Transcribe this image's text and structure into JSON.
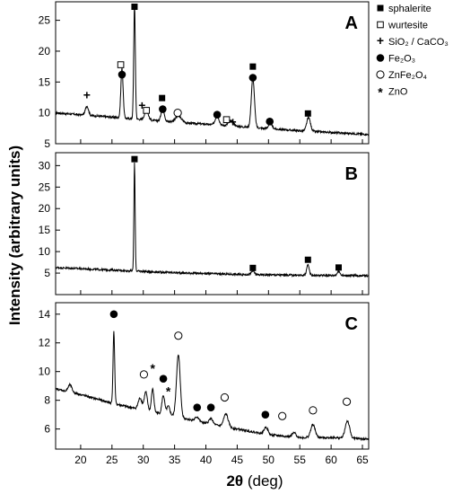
{
  "figure": {
    "ylabel": "Intensity (arbitrary units)",
    "xlabel_theta": "2θ",
    "xlabel_unit": " (deg)"
  },
  "legend": [
    {
      "key": "sphalerite",
      "symbol": "filled-square",
      "label": "sphalerite"
    },
    {
      "key": "wurtesite",
      "symbol": "open-square",
      "label": "wurtesite"
    },
    {
      "key": "sio2",
      "symbol": "plus",
      "label": "SiO₂ / CaCO₃"
    },
    {
      "key": "fe2o3",
      "symbol": "filled-circle",
      "label": "Fe₂O₃"
    },
    {
      "key": "znfe2o4",
      "symbol": "open-circle",
      "label": "ZnFe₂O₄"
    },
    {
      "key": "zno",
      "symbol": "star",
      "label": "ZnO"
    }
  ],
  "chart_data": [
    {
      "type": "line",
      "panel": "A",
      "xlim": [
        16,
        66
      ],
      "ylim": [
        5,
        28
      ],
      "yticks": [
        5,
        10,
        15,
        20,
        25
      ],
      "xticks": [
        20,
        25,
        30,
        35,
        40,
        45,
        50,
        55,
        60,
        65
      ],
      "baseline": [
        [
          16,
          10.0
        ],
        [
          25,
          9.3
        ],
        [
          35,
          8.5
        ],
        [
          45,
          7.8
        ],
        [
          55,
          7.1
        ],
        [
          66,
          6.5
        ]
      ],
      "peaks": [
        [
          21.0,
          1.5,
          0.25
        ],
        [
          26.6,
          8.0,
          0.18
        ],
        [
          28.6,
          18.5,
          0.13
        ],
        [
          30.5,
          1.5,
          0.3
        ],
        [
          33.1,
          2.2,
          0.25
        ],
        [
          35.6,
          1.0,
          0.5
        ],
        [
          41.8,
          1.5,
          0.3
        ],
        [
          44.0,
          0.8,
          0.4
        ],
        [
          47.5,
          8.0,
          0.25
        ],
        [
          50.3,
          0.8,
          0.3
        ],
        [
          56.4,
          2.2,
          0.3
        ]
      ],
      "markers": [
        {
          "x": 28.6,
          "y": 27.2,
          "symbol": "filled-square"
        },
        {
          "x": 26.4,
          "y": 17.8,
          "symbol": "open-square"
        },
        {
          "x": 26.6,
          "y": 16.2,
          "symbol": "filled-circle"
        },
        {
          "x": 21.0,
          "y": 12.8,
          "symbol": "plus"
        },
        {
          "x": 29.8,
          "y": 11.1,
          "symbol": "plus"
        },
        {
          "x": 30.5,
          "y": 10.4,
          "symbol": "open-square"
        },
        {
          "x": 33.0,
          "y": 12.4,
          "symbol": "filled-square"
        },
        {
          "x": 33.1,
          "y": 10.6,
          "symbol": "filled-circle"
        },
        {
          "x": 35.5,
          "y": 10.0,
          "symbol": "open-circle"
        },
        {
          "x": 41.8,
          "y": 9.7,
          "symbol": "filled-circle"
        },
        {
          "x": 43.3,
          "y": 8.9,
          "symbol": "open-square"
        },
        {
          "x": 44.3,
          "y": 8.4,
          "symbol": "plus"
        },
        {
          "x": 47.5,
          "y": 17.5,
          "symbol": "filled-square"
        },
        {
          "x": 47.5,
          "y": 15.7,
          "symbol": "filled-circle"
        },
        {
          "x": 50.2,
          "y": 8.6,
          "symbol": "filled-circle"
        },
        {
          "x": 56.3,
          "y": 9.9,
          "symbol": "filled-square"
        }
      ]
    },
    {
      "type": "line",
      "panel": "B",
      "xlim": [
        16,
        66
      ],
      "ylim": [
        0,
        33
      ],
      "yticks": [
        5,
        10,
        15,
        20,
        25,
        30
      ],
      "xticks": [
        20,
        25,
        30,
        35,
        40,
        45,
        50,
        55,
        60,
        65
      ],
      "baseline": [
        [
          16,
          6.3
        ],
        [
          25,
          5.7
        ],
        [
          35,
          5.1
        ],
        [
          45,
          4.7
        ],
        [
          55,
          4.5
        ],
        [
          66,
          4.4
        ]
      ],
      "peaks": [
        [
          28.6,
          25.0,
          0.1
        ],
        [
          47.5,
          0.8,
          0.25
        ],
        [
          56.3,
          2.3,
          0.22
        ],
        [
          61.2,
          0.9,
          0.25
        ]
      ],
      "markers": [
        {
          "x": 28.6,
          "y": 31.5,
          "symbol": "filled-square"
        },
        {
          "x": 47.5,
          "y": 6.2,
          "symbol": "filled-square"
        },
        {
          "x": 56.3,
          "y": 8.1,
          "symbol": "filled-square"
        },
        {
          "x": 61.2,
          "y": 6.3,
          "symbol": "filled-square"
        }
      ]
    },
    {
      "type": "line",
      "panel": "C",
      "xlim": [
        16,
        66
      ],
      "ylim": [
        4.6,
        14.8
      ],
      "yticks": [
        6,
        8,
        10,
        12,
        14
      ],
      "xticks": [
        20,
        25,
        30,
        35,
        40,
        45,
        50,
        55,
        60,
        65
      ],
      "baseline": [
        [
          16,
          8.8
        ],
        [
          20,
          8.4
        ],
        [
          25,
          7.8
        ],
        [
          30,
          7.3
        ],
        [
          35,
          6.9
        ],
        [
          40,
          6.4
        ],
        [
          45,
          6.0
        ],
        [
          50,
          5.6
        ],
        [
          55,
          5.4
        ],
        [
          60,
          5.4
        ],
        [
          66,
          5.3
        ]
      ],
      "peaks": [
        [
          18.3,
          0.5,
          0.3
        ],
        [
          25.3,
          5.0,
          0.13
        ],
        [
          29.5,
          0.8,
          0.3
        ],
        [
          30.4,
          1.3,
          0.25
        ],
        [
          31.5,
          1.6,
          0.2
        ],
        [
          33.2,
          1.3,
          0.22
        ],
        [
          34.0,
          0.6,
          0.25
        ],
        [
          35.6,
          4.3,
          0.3
        ],
        [
          38.6,
          0.3,
          0.3
        ],
        [
          40.8,
          0.4,
          0.3
        ],
        [
          43.2,
          0.9,
          0.35
        ],
        [
          49.6,
          0.5,
          0.3
        ],
        [
          54.1,
          0.3,
          0.3
        ],
        [
          57.1,
          0.9,
          0.35
        ],
        [
          62.6,
          1.2,
          0.35
        ]
      ],
      "markers": [
        {
          "x": 25.3,
          "y": 14.0,
          "symbol": "filled-circle"
        },
        {
          "x": 30.1,
          "y": 9.8,
          "symbol": "open-circle"
        },
        {
          "x": 31.5,
          "y": 10.3,
          "symbol": "star"
        },
        {
          "x": 33.2,
          "y": 9.5,
          "symbol": "filled-circle"
        },
        {
          "x": 34.0,
          "y": 8.7,
          "symbol": "star"
        },
        {
          "x": 35.6,
          "y": 12.5,
          "symbol": "open-circle"
        },
        {
          "x": 38.6,
          "y": 7.5,
          "symbol": "filled-circle"
        },
        {
          "x": 40.8,
          "y": 7.5,
          "symbol": "filled-circle"
        },
        {
          "x": 43.0,
          "y": 8.2,
          "symbol": "open-circle"
        },
        {
          "x": 49.5,
          "y": 7.0,
          "symbol": "filled-circle"
        },
        {
          "x": 52.2,
          "y": 6.9,
          "symbol": "open-circle"
        },
        {
          "x": 57.1,
          "y": 7.3,
          "symbol": "open-circle"
        },
        {
          "x": 62.5,
          "y": 7.9,
          "symbol": "open-circle"
        }
      ]
    }
  ]
}
